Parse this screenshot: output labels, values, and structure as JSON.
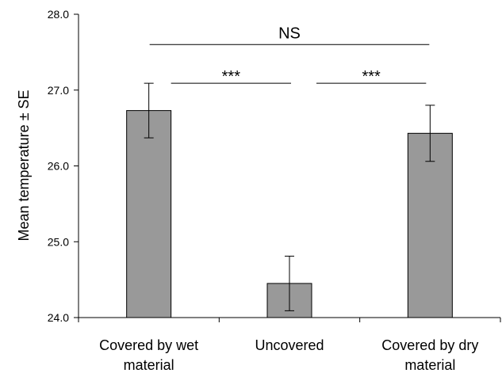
{
  "chart_data": {
    "type": "bar",
    "categories": [
      [
        "Covered by wet",
        "material"
      ],
      [
        "Uncovered"
      ],
      [
        "Covered by dry",
        "material"
      ]
    ],
    "values": [
      26.73,
      24.45,
      26.43
    ],
    "errors": [
      0.36,
      0.36,
      0.37
    ],
    "ylabel": "Mean temperature ± SE",
    "ylim": [
      24.0,
      28.0
    ],
    "yticks": [
      "24.0",
      "25.0",
      "26.0",
      "27.0",
      "28.0"
    ],
    "bar_color": "#999999",
    "grid": false,
    "comparisons": [
      {
        "from": 0,
        "to": 1,
        "label": "***",
        "level": 27.09
      },
      {
        "from": 1,
        "to": 2,
        "label": "***",
        "level": 27.09
      },
      {
        "from": 0,
        "to": 2,
        "label": "NS",
        "level": 27.6
      }
    ]
  }
}
